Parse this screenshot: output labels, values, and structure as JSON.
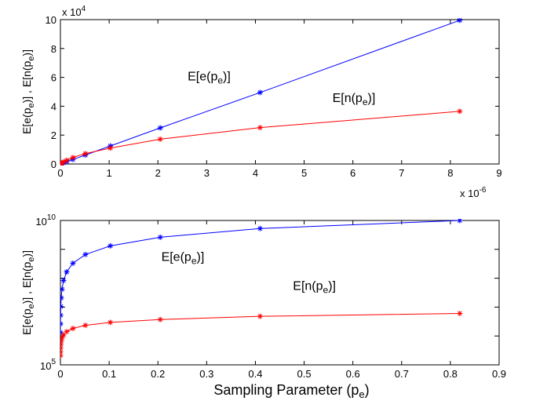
{
  "chart_data": [
    {
      "type": "line",
      "title": "",
      "xlabel": "",
      "ylabel": "E[e(p_e)] , E[n(p_e)]",
      "x_exponent_label": "x 10^-6",
      "y_exponent_label": "x 10^4",
      "xlim": [
        0,
        9
      ],
      "ylim": [
        0,
        10
      ],
      "x_ticks": [
        "0",
        "1",
        "2",
        "3",
        "4",
        "5",
        "6",
        "7",
        "8",
        "9"
      ],
      "y_ticks": [
        "0",
        "2",
        "4",
        "6",
        "8",
        "10"
      ],
      "series": [
        {
          "name": "E[e(p_e)]",
          "color": "#0000ff",
          "marker": "*",
          "x": [
            0,
            0.016,
            0.032,
            0.064,
            0.128,
            0.256,
            0.512,
            1.024,
            2.048,
            4.096,
            8.192
          ],
          "y": [
            0,
            0.02,
            0.04,
            0.08,
            0.16,
            0.31,
            0.62,
            1.25,
            2.5,
            4.95,
            9.95
          ]
        },
        {
          "name": "E[n(p_e)]",
          "color": "#ff0000",
          "marker": "*",
          "x": [
            0,
            0.016,
            0.032,
            0.064,
            0.128,
            0.256,
            0.512,
            1.024,
            2.048,
            4.096,
            8.192
          ],
          "y": [
            0,
            0.04,
            0.08,
            0.15,
            0.26,
            0.45,
            0.72,
            1.1,
            1.72,
            2.52,
            3.65
          ]
        }
      ]
    },
    {
      "type": "line",
      "title": "",
      "xlabel": "Sampling Parameter (p_e)",
      "ylabel": "E[e(p_e)] , E[n(p_e)]",
      "y_scale": "log",
      "xlim": [
        0,
        0.9
      ],
      "ylim": [
        5,
        10
      ],
      "x_ticks": [
        "0",
        "0.1",
        "0.2",
        "0.3",
        "0.4",
        "0.5",
        "0.6",
        "0.7",
        "0.8",
        "0.9"
      ],
      "y_ticks": [
        "10^5",
        "10^10"
      ],
      "series": [
        {
          "name": "E[e(p_e)]",
          "color": "#0000ff",
          "marker": "*",
          "x": [
            0.0001,
            0.0002,
            0.0004,
            0.0008,
            0.0016,
            0.0032,
            0.0064,
            0.0128,
            0.0256,
            0.0512,
            0.1024,
            0.2048,
            0.4096,
            0.8192
          ],
          "y": [
            6.12,
            6.42,
            6.72,
            7.02,
            7.32,
            7.62,
            7.92,
            8.22,
            8.52,
            8.82,
            9.12,
            9.42,
            9.72,
            10.0
          ]
        },
        {
          "name": "E[n(p_e)]",
          "color": "#ff0000",
          "marker": "*",
          "x": [
            0.0001,
            0.0002,
            0.0004,
            0.0008,
            0.0016,
            0.0032,
            0.0064,
            0.0128,
            0.0256,
            0.0512,
            0.1024,
            0.2048,
            0.4096,
            0.8192
          ],
          "y": [
            5.32,
            5.45,
            5.58,
            5.7,
            5.82,
            5.93,
            6.04,
            6.15,
            6.26,
            6.37,
            6.47,
            6.57,
            6.68,
            6.78
          ]
        }
      ]
    }
  ]
}
